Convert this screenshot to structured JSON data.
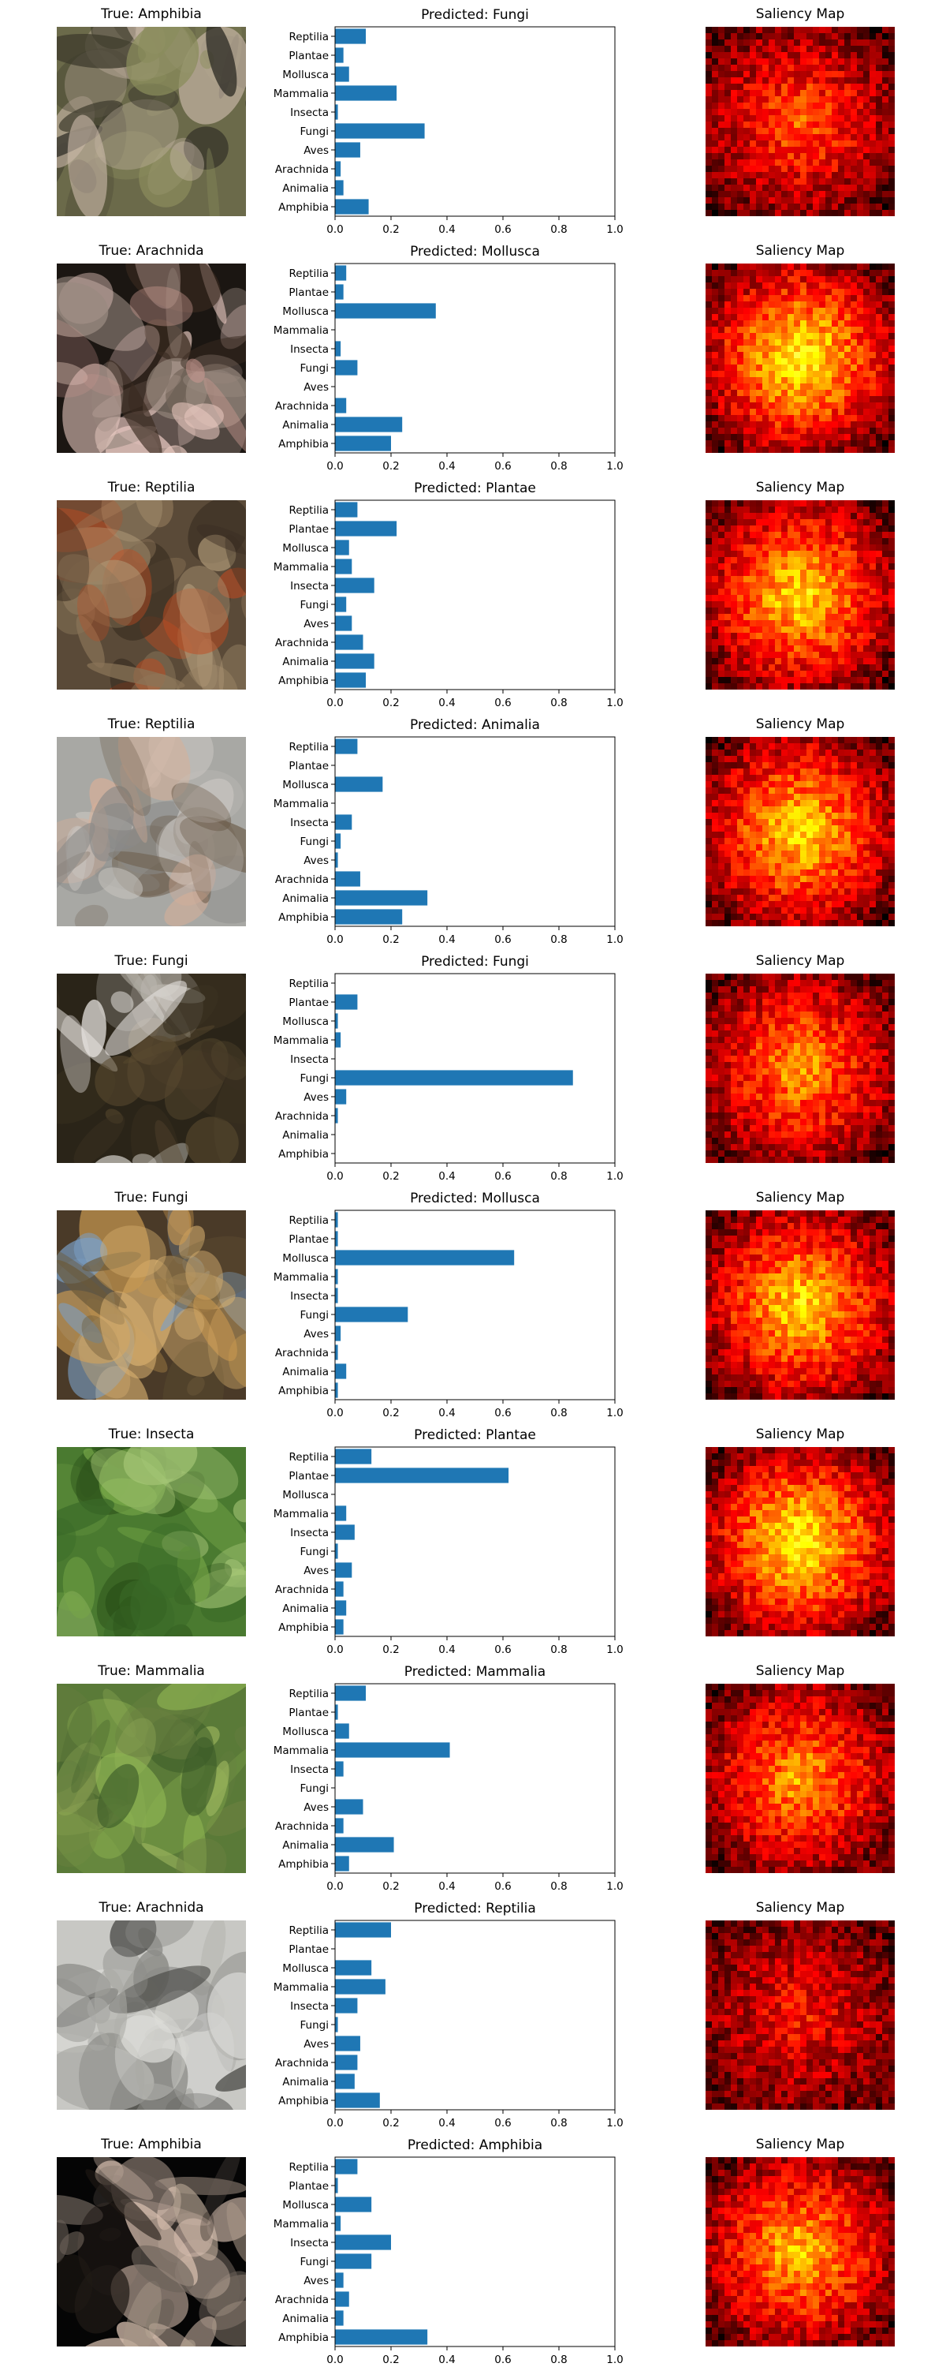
{
  "colors": {
    "bar": "#1f77b4",
    "axis": "#000000"
  },
  "saliency_title": "Saliency Map",
  "chart_data": [
    {
      "type": "bar",
      "orientation": "horizontal",
      "true_label": "True: Amphibia",
      "title": "Predicted: Fungi",
      "categories": [
        "Amphibia",
        "Animalia",
        "Arachnida",
        "Aves",
        "Fungi",
        "Insecta",
        "Mammalia",
        "Mollusca",
        "Plantae",
        "Reptilia"
      ],
      "values": [
        0.12,
        0.03,
        0.02,
        0.09,
        0.32,
        0.01,
        0.22,
        0.05,
        0.03,
        0.11
      ],
      "xlim": [
        0,
        1
      ],
      "xticks": [
        "0.0",
        "0.2",
        "0.4",
        "0.6",
        "0.8",
        "1.0"
      ]
    },
    {
      "type": "bar",
      "orientation": "horizontal",
      "true_label": "True: Arachnida",
      "title": "Predicted: Mollusca",
      "categories": [
        "Amphibia",
        "Animalia",
        "Arachnida",
        "Aves",
        "Fungi",
        "Insecta",
        "Mammalia",
        "Mollusca",
        "Plantae",
        "Reptilia"
      ],
      "values": [
        0.2,
        0.24,
        0.04,
        0.0,
        0.08,
        0.02,
        0.0,
        0.36,
        0.03,
        0.04
      ],
      "xlim": [
        0,
        1
      ],
      "xticks": [
        "0.0",
        "0.2",
        "0.4",
        "0.6",
        "0.8",
        "1.0"
      ]
    },
    {
      "type": "bar",
      "orientation": "horizontal",
      "true_label": "True: Reptilia",
      "title": "Predicted: Plantae",
      "categories": [
        "Amphibia",
        "Animalia",
        "Arachnida",
        "Aves",
        "Fungi",
        "Insecta",
        "Mammalia",
        "Mollusca",
        "Plantae",
        "Reptilia"
      ],
      "values": [
        0.11,
        0.14,
        0.1,
        0.06,
        0.04,
        0.14,
        0.06,
        0.05,
        0.22,
        0.08
      ],
      "xlim": [
        0,
        1
      ],
      "xticks": [
        "0.0",
        "0.2",
        "0.4",
        "0.6",
        "0.8",
        "1.0"
      ]
    },
    {
      "type": "bar",
      "orientation": "horizontal",
      "true_label": "True: Reptilia",
      "title": "Predicted: Animalia",
      "categories": [
        "Amphibia",
        "Animalia",
        "Arachnida",
        "Aves",
        "Fungi",
        "Insecta",
        "Mammalia",
        "Mollusca",
        "Plantae",
        "Reptilia"
      ],
      "values": [
        0.24,
        0.33,
        0.09,
        0.01,
        0.02,
        0.06,
        0.0,
        0.17,
        0.0,
        0.08
      ],
      "xlim": [
        0,
        1
      ],
      "xticks": [
        "0.0",
        "0.2",
        "0.4",
        "0.6",
        "0.8",
        "1.0"
      ]
    },
    {
      "type": "bar",
      "orientation": "horizontal",
      "true_label": "True: Fungi",
      "title": "Predicted: Fungi",
      "categories": [
        "Amphibia",
        "Animalia",
        "Arachnida",
        "Aves",
        "Fungi",
        "Insecta",
        "Mammalia",
        "Mollusca",
        "Plantae",
        "Reptilia"
      ],
      "values": [
        0.0,
        0.0,
        0.01,
        0.04,
        0.85,
        0.0,
        0.02,
        0.01,
        0.08,
        0.0
      ],
      "xlim": [
        0,
        1
      ],
      "xticks": [
        "0.0",
        "0.2",
        "0.4",
        "0.6",
        "0.8",
        "1.0"
      ]
    },
    {
      "type": "bar",
      "orientation": "horizontal",
      "true_label": "True: Fungi",
      "title": "Predicted: Mollusca",
      "categories": [
        "Amphibia",
        "Animalia",
        "Arachnida",
        "Aves",
        "Fungi",
        "Insecta",
        "Mammalia",
        "Mollusca",
        "Plantae",
        "Reptilia"
      ],
      "values": [
        0.01,
        0.04,
        0.01,
        0.02,
        0.26,
        0.01,
        0.01,
        0.64,
        0.01,
        0.01
      ],
      "xlim": [
        0,
        1
      ],
      "xticks": [
        "0.0",
        "0.2",
        "0.4",
        "0.6",
        "0.8",
        "1.0"
      ]
    },
    {
      "type": "bar",
      "orientation": "horizontal",
      "true_label": "True: Insecta",
      "title": "Predicted: Plantae",
      "categories": [
        "Amphibia",
        "Animalia",
        "Arachnida",
        "Aves",
        "Fungi",
        "Insecta",
        "Mammalia",
        "Mollusca",
        "Plantae",
        "Reptilia"
      ],
      "values": [
        0.03,
        0.04,
        0.03,
        0.06,
        0.01,
        0.07,
        0.04,
        0.0,
        0.62,
        0.13
      ],
      "xlim": [
        0,
        1
      ],
      "xticks": [
        "0.0",
        "0.2",
        "0.4",
        "0.6",
        "0.8",
        "1.0"
      ]
    },
    {
      "type": "bar",
      "orientation": "horizontal",
      "true_label": "True: Mammalia",
      "title": "Predicted: Mammalia",
      "categories": [
        "Amphibia",
        "Animalia",
        "Arachnida",
        "Aves",
        "Fungi",
        "Insecta",
        "Mammalia",
        "Mollusca",
        "Plantae",
        "Reptilia"
      ],
      "values": [
        0.05,
        0.21,
        0.03,
        0.1,
        0.0,
        0.03,
        0.41,
        0.05,
        0.01,
        0.11
      ],
      "xlim": [
        0,
        1
      ],
      "xticks": [
        "0.0",
        "0.2",
        "0.4",
        "0.6",
        "0.8",
        "1.0"
      ]
    },
    {
      "type": "bar",
      "orientation": "horizontal",
      "true_label": "True: Arachnida",
      "title": "Predicted: Reptilia",
      "categories": [
        "Amphibia",
        "Animalia",
        "Arachnida",
        "Aves",
        "Fungi",
        "Insecta",
        "Mammalia",
        "Mollusca",
        "Plantae",
        "Reptilia"
      ],
      "values": [
        0.16,
        0.07,
        0.08,
        0.09,
        0.01,
        0.08,
        0.18,
        0.13,
        0.0,
        0.2
      ],
      "xlim": [
        0,
        1
      ],
      "xticks": [
        "0.0",
        "0.2",
        "0.4",
        "0.6",
        "0.8",
        "1.0"
      ]
    },
    {
      "type": "bar",
      "orientation": "horizontal",
      "true_label": "True: Amphibia",
      "title": "Predicted: Amphibia",
      "categories": [
        "Amphibia",
        "Animalia",
        "Arachnida",
        "Aves",
        "Fungi",
        "Insecta",
        "Mammalia",
        "Mollusca",
        "Plantae",
        "Reptilia"
      ],
      "values": [
        0.33,
        0.03,
        0.05,
        0.03,
        0.13,
        0.2,
        0.02,
        0.13,
        0.01,
        0.08
      ],
      "xlim": [
        0,
        1
      ],
      "xticks": [
        "0.0",
        "0.2",
        "0.4",
        "0.6",
        "0.8",
        "1.0"
      ]
    }
  ]
}
